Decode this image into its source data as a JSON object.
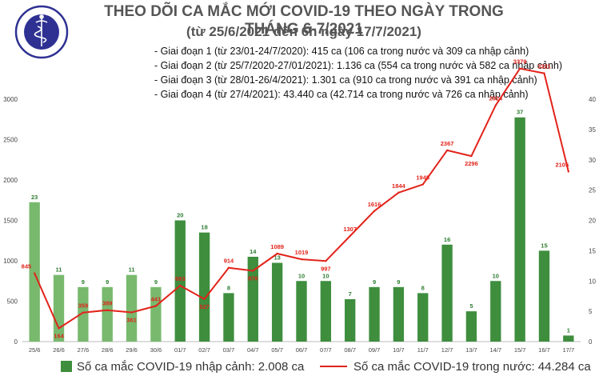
{
  "logo": {
    "text": "BỘ Y TẾ",
    "subtext": "MINISTRY OF HEALTH",
    "icon": "caduceus-icon",
    "color": "#2e3192"
  },
  "title": {
    "main": "THEO DÕI CA MẮC MỚI COVID-19 THEO NGÀY TRONG THÁNG 6-7/2021",
    "sub": "(từ 25/6/2021 đến 6h ngày 17/7/2021)"
  },
  "notes": [
    "- Giai đoạn 1 (từ 23/01-24/7/2020): 415 ca (106 ca trong nước và 309 ca nhập cảnh)",
    "- Giai đoạn 2 (từ 25/7/2020-27/01/2021): 1.136 ca (554 ca trong nước và 582 ca nhập cảnh)",
    "- Giai đoạn 3 (từ 28/01-26/4/2021): 1.301 ca (910 ca trong nước và 391 ca nhập cảnh)",
    "- Giai đoạn 4 (từ 27/4/2021): 43.440 ca (42.714 ca trong nước và 726 ca nhập cảnh)"
  ],
  "legend": {
    "bar": "Số ca mắc COVID-19 nhập cảnh: 2.008 ca",
    "line": "Số ca mắc COVID-19 trong nước: 44.284 ca"
  },
  "colors": {
    "bar_june": "#78b96e",
    "bar_july": "#3e8e3e",
    "line": "#e2231a",
    "bar_label": "#2e7d32",
    "axis_text": "#444444"
  },
  "chart_data": {
    "type": "bar+line",
    "categories": [
      "25/6",
      "26/6",
      "27/6",
      "28/6",
      "29/6",
      "30/6",
      "01/7",
      "02/7",
      "03/7",
      "04/7",
      "05/7",
      "06/7",
      "07/7",
      "08/7",
      "09/7",
      "10/7",
      "11/7",
      "12/7",
      "13/7",
      "14/7",
      "15/7",
      "16/7",
      "17/7"
    ],
    "series": [
      {
        "name": "Số ca mắc COVID-19 nhập cảnh",
        "type": "bar",
        "axis": "right",
        "values": [
          23,
          11,
          9,
          9,
          11,
          9,
          20,
          18,
          8,
          14,
          13,
          10,
          10,
          7,
          9,
          9,
          8,
          16,
          5,
          10,
          37,
          15,
          1
        ]
      },
      {
        "name": "Số ca mắc COVID-19 trong nước",
        "type": "line",
        "axis": "left",
        "values": [
          845,
          164,
          359,
          389,
          361,
          441,
          693,
          527,
          914,
          876,
          1089,
          1019,
          997,
          1307,
          1616,
          1844,
          1945,
          2367,
          2296,
          2924,
          3379,
          3321,
          2105
        ]
      }
    ],
    "left_axis": {
      "ylim": [
        0,
        3000
      ],
      "ticks": [
        0,
        500,
        1000,
        1500,
        2000,
        2500,
        3000
      ]
    },
    "right_axis": {
      "ylim": [
        0,
        40
      ],
      "ticks": [
        0,
        5,
        10,
        15,
        20,
        25,
        30,
        35,
        40
      ]
    },
    "grid": false,
    "legend_position": "bottom"
  }
}
